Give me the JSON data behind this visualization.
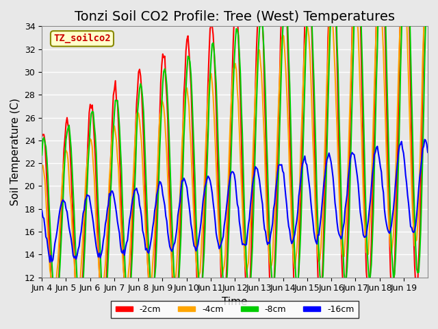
{
  "title": "Tonzi Soil CO2 Profile: Tree (West) Temperatures",
  "xlabel": "Time",
  "ylabel": "Soil Temperature (C)",
  "ylim": [
    12,
    34
  ],
  "xlim_days": [
    0,
    15
  ],
  "x_tick_labels": [
    "Jun 4",
    "Jun 5",
    "Jun 6",
    "Jun 7",
    "Jun 8",
    "Jun 9",
    "Jun 10",
    "Jun 11",
    "Jun 12",
    "Jun 13",
    "Jun 14",
    "Jun 15",
    "Jun 16",
    "Jun 17",
    "Jun 18",
    "Jun 19"
  ],
  "legend_label": "TZ_soilco2",
  "series_labels": [
    "-2cm",
    "-4cm",
    "-8cm",
    "-16cm"
  ],
  "series_colors": [
    "#FF0000",
    "#FFA500",
    "#00CC00",
    "#0000FF"
  ],
  "series_linewidths": [
    1.5,
    1.5,
    1.5,
    1.5
  ],
  "background_color": "#E8E8E8",
  "plot_bg_color": "#E8E8E8",
  "grid_color": "#FFFFFF",
  "title_fontsize": 14,
  "axis_fontsize": 11,
  "tick_fontsize": 9,
  "legend_fontsize": 9,
  "n_points_per_day": 24,
  "n_days": 16,
  "amplitude_base": [
    8.5,
    6.0,
    7.5,
    2.5
  ],
  "amplitude_growth": [
    0.6,
    0.4,
    0.5,
    0.1
  ],
  "mean_base": [
    16.0,
    16.0,
    16.5,
    16.0
  ],
  "mean_growth": [
    0.8,
    0.7,
    0.7,
    0.25
  ],
  "phase_shift": [
    0,
    0.3,
    -0.3,
    1.2
  ],
  "noise_level": [
    0.3,
    0.2,
    0.2,
    0.15
  ],
  "day_peak_hour": [
    13,
    13,
    13,
    14
  ]
}
